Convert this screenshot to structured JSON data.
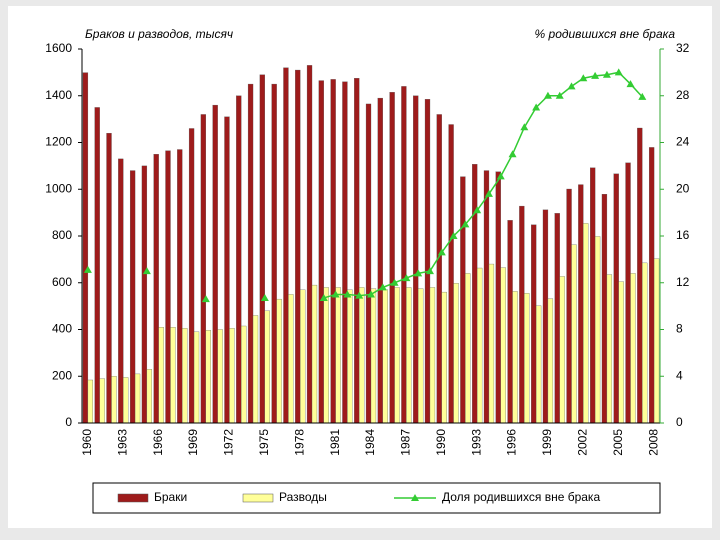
{
  "chart_data": {
    "type": "bar",
    "y_label": "Браков и разводов, тысяч",
    "y2_label": "% родившихся вне брака",
    "categories": [
      "1960",
      null,
      null,
      "1963",
      null,
      null,
      "1966",
      null,
      null,
      "1969",
      null,
      null,
      "1972",
      null,
      null,
      "1975",
      null,
      null,
      "1978",
      null,
      null,
      "1981",
      null,
      null,
      "1984",
      null,
      null,
      "1987",
      null,
      null,
      "1990",
      null,
      null,
      "1993",
      null,
      null,
      "1996",
      null,
      null,
      "1999",
      null,
      null,
      "2002",
      null,
      null,
      "2005",
      null,
      null,
      "2008"
    ],
    "series": [
      {
        "name": "Браки",
        "color": "#9e1b1b",
        "type": "bar",
        "values": [
          1499,
          1350,
          1240,
          1130,
          1080,
          1100,
          1150,
          1165,
          1170,
          1260,
          1320,
          1360,
          1310,
          1400,
          1450,
          1490,
          1450,
          1520,
          1510,
          1530,
          1465,
          1470,
          1460,
          1475,
          1365,
          1390,
          1415,
          1440,
          1400,
          1385,
          1320,
          1277,
          1054,
          1107,
          1080,
          1075,
          867,
          928,
          848,
          912,
          897,
          1001,
          1020,
          1092,
          979,
          1066,
          1113,
          1262,
          1179
        ]
      },
      {
        "name": "Разводы",
        "color": "#ffff99",
        "type": "bar",
        "values": [
          184,
          190,
          200,
          195,
          210,
          230,
          410,
          410,
          405,
          390,
          397,
          400,
          405,
          415,
          460,
          480,
          530,
          550,
          570,
          590,
          580,
          580,
          570,
          580,
          575,
          570,
          580,
          580,
          575,
          580,
          560,
          598,
          640,
          663,
          680,
          665,
          563,
          555,
          502,
          532,
          627,
          763,
          854,
          798,
          635,
          605,
          640,
          685,
          703
        ]
      },
      {
        "name": "Доля родившихся вне брака",
        "color": "#33cc33",
        "type": "line",
        "axis": "y2",
        "values": [
          13.1,
          null,
          null,
          null,
          null,
          13.0,
          null,
          null,
          null,
          null,
          10.6,
          null,
          null,
          null,
          null,
          10.7,
          null,
          null,
          null,
          null,
          10.7,
          11.0,
          11.0,
          10.9,
          11.0,
          11.6,
          12.0,
          12.4,
          12.8,
          13.0,
          14.6,
          16.0,
          17.0,
          18.2,
          19.6,
          21.1,
          23.0,
          25.3,
          27.0,
          28.0,
          28.0,
          28.8,
          29.5,
          29.7,
          29.8,
          30.0,
          29.0,
          27.9,
          null
        ]
      }
    ],
    "ylim": [
      0,
      1600
    ],
    "yticks": [
      0,
      200,
      400,
      600,
      800,
      1000,
      1200,
      1400,
      1600
    ],
    "y2lim": [
      0,
      32
    ],
    "y2ticks": [
      0,
      4,
      8,
      12,
      16,
      20,
      24,
      28,
      32
    ],
    "y2_color": "#33aa33",
    "legend": "bottom"
  }
}
